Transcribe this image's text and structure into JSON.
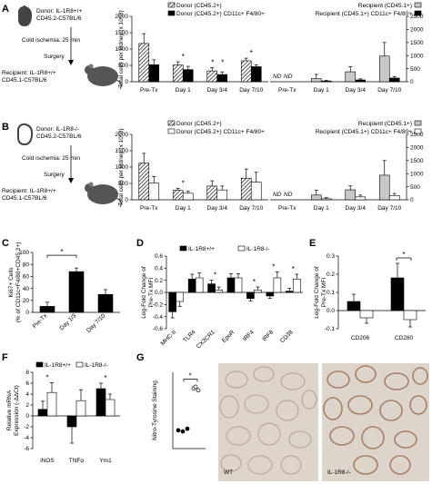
{
  "panels": {
    "A": {
      "letter": "A",
      "donor": "Donor: IL-1R8+/+",
      "donor_strain": "CD45.2-C57BL/6",
      "ischemia": "Cold ischemia: 25 min",
      "surgery": "Surgery",
      "recipient": "Recipient: IL-1R8+/+",
      "recipient_strain": "CD45.1-C57BL/6"
    },
    "B": {
      "letter": "B",
      "donor": "Donor: IL-1R8-/-",
      "donor_strain": "CD45.2-C57BL/6",
      "ischemia": "Cold ischemia: 25 min",
      "surgery": "Surgery",
      "recipient": "Recipient: IL-1R8+/+",
      "recipient_strain": "CD45.1-C57BL/6"
    },
    "C": {
      "letter": "C"
    },
    "D": {
      "letter": "D"
    },
    "E": {
      "letter": "E"
    },
    "F": {
      "letter": "F"
    },
    "G": {
      "letter": "G",
      "img_wt": "WT",
      "img_ko": "IL-1R8-/-"
    }
  },
  "colors": {
    "black": "#000000",
    "grey": "#c8c8c8",
    "white": "#ffffff",
    "tissue": "#ddd5cb"
  },
  "chart_data": [
    {
      "id": "A-donor",
      "type": "bar",
      "categories": [
        "Pre-Tx",
        "Day 1",
        "Day 3/4",
        "Day 7/10"
      ],
      "ylabel": "Total cells per kidney (x 10^3)",
      "ylim": [
        0,
        2000
      ],
      "legend": "top",
      "series": [
        {
          "name": "Donor (CD45.2+)",
          "values": [
            1170,
            510,
            330,
            640
          ],
          "err": [
            300,
            100,
            100,
            80
          ]
        },
        {
          "name": "Donor (CD45.2+) CD11c+ F4/80+",
          "values": [
            520,
            370,
            220,
            460
          ],
          "err": [
            150,
            100,
            80,
            60
          ]
        }
      ],
      "annotations": [
        "*",
        "*",
        "*",
        "*",
        "*"
      ]
    },
    {
      "id": "A-recipient",
      "type": "bar",
      "categories": [
        "Pre-Tx",
        "Day 1",
        "Day 3/4",
        "Day 7/10"
      ],
      "ylim": [
        0,
        2500
      ],
      "yticks": [
        0,
        500,
        1000,
        1500,
        2000,
        2500
      ],
      "legend": "top",
      "series": [
        {
          "name": "Recipient (CD45.1+)",
          "values": [
            0,
            120,
            380,
            980
          ],
          "err": [
            0,
            160,
            200,
            520
          ]
        },
        {
          "name": "Recipient (CD45.1+) CD11c+ F4/80+",
          "values": [
            0,
            30,
            70,
            140
          ],
          "err": [
            0,
            20,
            40,
            60
          ]
        }
      ],
      "labels": [
        "ND",
        "ND"
      ]
    },
    {
      "id": "B-donor",
      "type": "bar",
      "categories": [
        "Pre-Tx",
        "Day 1",
        "Day 3/4",
        "Day 7/10"
      ],
      "ylabel": "Total cells per kidney (x 10^3)",
      "ylim": [
        0,
        2000
      ],
      "legend": "top",
      "series": [
        {
          "name": "Donor (CD45.2+)",
          "values": [
            1120,
            290,
            420,
            660
          ],
          "err": [
            300,
            60,
            160,
            280
          ]
        },
        {
          "name": "Donor (CD45.2+) CD11c+ F4/80+",
          "values": [
            510,
            200,
            300,
            540
          ],
          "err": [
            200,
            60,
            120,
            300
          ]
        }
      ],
      "annotations": [
        "*"
      ]
    },
    {
      "id": "B-recipient",
      "type": "bar",
      "categories": [
        "Pre-Tx",
        "Day 1",
        "Day 3/4",
        "Day 7/10"
      ],
      "ylim": [
        0,
        2500
      ],
      "yticks": [
        0,
        500,
        1000,
        1500,
        2000,
        2500
      ],
      "legend": "top",
      "series": [
        {
          "name": "Recipient (CD45.1+)",
          "values": [
            0,
            180,
            380,
            940
          ],
          "err": [
            0,
            180,
            150,
            560
          ]
        },
        {
          "name": "Recipient (CD45.1+) CD11c+ F4/80+",
          "values": [
            0,
            40,
            110,
            160
          ],
          "err": [
            0,
            40,
            70,
            80
          ]
        }
      ],
      "labels": [
        "ND",
        "ND"
      ]
    },
    {
      "id": "C",
      "type": "bar",
      "categories": [
        "Pre-Tx",
        "Day 1/3",
        "Day 7/10"
      ],
      "values": [
        10,
        68,
        30
      ],
      "err": [
        7,
        6,
        8
      ],
      "ylabel": "Ki67+ Cells (% of CD11c+F4/80+CD45.2+)",
      "ylim": [
        0,
        100
      ],
      "annotations": [
        "*"
      ]
    },
    {
      "id": "D",
      "type": "bar",
      "categories": [
        "MHC-II",
        "TLR4",
        "CX3CR1",
        "EpoR",
        "IRF4",
        "IRF8",
        "CD38"
      ],
      "ylabel": "Log-Fold Change of Pre-Tx MFI",
      "ylim": [
        -0.6,
        0.6
      ],
      "yticks": [
        -0.6,
        -0.4,
        -0.2,
        0.0,
        0.2,
        0.4,
        0.6
      ],
      "legend": "top",
      "series": [
        {
          "name": "IL-1R8+/+",
          "values": [
            -0.32,
            0.22,
            0.14,
            0.24,
            -0.1,
            -0.06,
            0.02
          ],
          "err": [
            0.1,
            0.08,
            0.06,
            0.07,
            0.04,
            0.04,
            0.05
          ]
        },
        {
          "name": "IL-1R8-/-",
          "values": [
            -0.15,
            0.24,
            0.04,
            0.24,
            0.04,
            0.24,
            0.22
          ],
          "err": [
            0.08,
            0.08,
            0.05,
            0.07,
            0.05,
            0.1,
            0.08
          ]
        }
      ],
      "annotations": [
        "*",
        "*",
        "*",
        "*"
      ]
    },
    {
      "id": "E",
      "type": "bar",
      "categories": [
        "CD206",
        "CD280"
      ],
      "ylabel": "Log-Fold Change of Pre-Tx MFI",
      "ylim": [
        -0.1,
        0.3
      ],
      "yticks": [
        -0.1,
        0.0,
        0.1,
        0.2,
        0.3
      ],
      "series": [
        {
          "name": "IL-1R8+/+",
          "values": [
            0.05,
            0.18
          ],
          "err": [
            0.04,
            0.08
          ]
        },
        {
          "name": "IL-1R8-/-",
          "values": [
            -0.04,
            -0.05
          ],
          "err": [
            0.03,
            0.04
          ]
        }
      ],
      "annotations": [
        "*"
      ]
    },
    {
      "id": "F",
      "type": "bar",
      "categories": [
        "iNOS",
        "TNFα",
        "Ym1"
      ],
      "ylabel": "Relative mRNA Expression (-ΔΔCt)",
      "ylim": [
        -6,
        8
      ],
      "yticks": [
        -6,
        -4,
        -2,
        0,
        2,
        4,
        6,
        8
      ],
      "legend": "top",
      "series": [
        {
          "name": "IL-1R8+/+",
          "values": [
            1.2,
            -2.0,
            5.0
          ],
          "err": [
            1.5,
            3.0,
            1.0
          ]
        },
        {
          "name": "IL-1R8-/-",
          "values": [
            4.3,
            2.8,
            3.0
          ],
          "err": [
            1.8,
            2.0,
            1.0
          ]
        }
      ],
      "annotations": [
        "*",
        "*"
      ]
    },
    {
      "id": "G",
      "type": "scatter",
      "ylabel": "Nitro-Tyrosine Staining",
      "series": [
        {
          "name": "WT",
          "points": [
            0.48,
            0.45,
            0.52
          ]
        },
        {
          "name": "IL-1R8-/-",
          "points": [
            1.58,
            1.53,
            1.62
          ]
        }
      ],
      "annotations": [
        "*"
      ]
    }
  ]
}
